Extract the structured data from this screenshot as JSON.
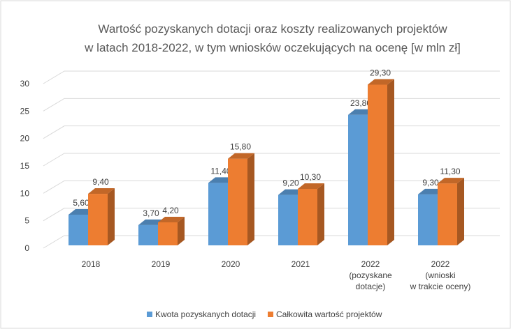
{
  "chart_data": {
    "type": "bar3d",
    "title": "Wartość pozyskanych dotacji oraz koszty realizowanych projektów\nw latach 2018-2022, w tym wniosków oczekujących na ocenę [w mln zł]",
    "categories": [
      "2018",
      "2019",
      "2020",
      "2021",
      "2022\n(pozyskane\ndotacje)",
      "2022\n(wnioski\nw trakcie oceny)"
    ],
    "series": [
      {
        "name": "Kwota pozyskanych dotacji",
        "color": "#5b9bd5",
        "values": [
          5.6,
          3.7,
          11.4,
          9.2,
          23.8,
          9.3
        ],
        "value_labels": [
          "5,60",
          "3,70",
          "11,40",
          "9,20",
          "23,80",
          "9,30"
        ]
      },
      {
        "name": "Całkowita wartość projektów",
        "color": "#ed7d31",
        "values": [
          9.4,
          4.2,
          15.8,
          10.3,
          29.3,
          11.3
        ],
        "value_labels": [
          "9,40",
          "4,20",
          "15,80",
          "10,30",
          "29,30",
          "11,30"
        ]
      }
    ],
    "ylim": [
      0,
      30
    ],
    "yticks": [
      0,
      5,
      10,
      15,
      20,
      25,
      30
    ],
    "grid": true,
    "legend": "bottom"
  }
}
